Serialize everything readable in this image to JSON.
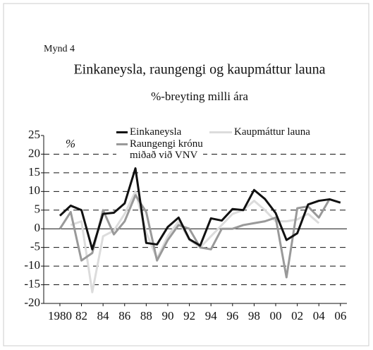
{
  "chart_data": {
    "type": "line",
    "label": "Mynd 4",
    "title": "Einkaneysla, raungengi og kaupmáttur launa",
    "subtitle": "%-breyting milli ára",
    "ylabel": "%",
    "x": [
      1980,
      1981,
      1982,
      1983,
      1984,
      1985,
      1986,
      1987,
      1988,
      1989,
      1990,
      1991,
      1992,
      1993,
      1994,
      1995,
      1996,
      1997,
      1998,
      1999,
      2000,
      2001,
      2002,
      2003,
      2004,
      2005,
      2006
    ],
    "series": [
      {
        "name": "Kaupmáttur launa",
        "color": "#dcdcdc",
        "values": [
          null,
          1,
          2,
          -17,
          -2,
          -0.5,
          4,
          10,
          -1,
          -8,
          -2,
          2,
          -3,
          -5,
          -2,
          1,
          4,
          5,
          7.5,
          5,
          2,
          2,
          2.5,
          4,
          1.5,
          null,
          null
        ]
      },
      {
        "name": "Raungengi krónu miðað við VNV",
        "color": "#999999",
        "values": [
          0,
          4.5,
          -8.5,
          -6.5,
          5,
          -1.5,
          2,
          9,
          4.5,
          -8.5,
          -3,
          1,
          0,
          -5,
          -5.5,
          0,
          0,
          1,
          1.5,
          2,
          3,
          -13,
          5.5,
          6,
          3,
          8,
          null
        ]
      },
      {
        "name": "Einkaneysla",
        "color": "#111111",
        "values": [
          3.5,
          6.2,
          5,
          -5.5,
          4,
          4.3,
          6.8,
          16.2,
          -3.8,
          -4.2,
          0.5,
          3,
          -2.8,
          -4.5,
          2.8,
          2.2,
          5.3,
          5,
          10.4,
          8,
          4.2,
          -3,
          -1.2,
          6.5,
          7.5,
          7.9,
          7
        ]
      }
    ],
    "xlim": [
      1978.5,
      2006.6
    ],
    "xticks": [
      1980,
      {
        "value": 1982,
        "label": "82"
      },
      {
        "value": 1984,
        "label": "84"
      },
      {
        "value": 1986,
        "label": "86"
      },
      {
        "value": 1988,
        "label": "88"
      },
      {
        "value": 1990,
        "label": "90"
      },
      {
        "value": 1992,
        "label": "92"
      },
      {
        "value": 1994,
        "label": "94"
      },
      {
        "value": 1996,
        "label": "96"
      },
      {
        "value": 1998,
        "label": "98"
      },
      {
        "value": 2000,
        "label": "00"
      },
      {
        "value": 2002,
        "label": "02"
      },
      {
        "value": 2004,
        "label": "04"
      },
      {
        "value": 2006,
        "label": "06"
      }
    ],
    "ylim": [
      -20,
      25
    ],
    "yticks": [
      -20,
      -15,
      -10,
      -5,
      0,
      5,
      10,
      15,
      20,
      25
    ],
    "grid": true
  }
}
